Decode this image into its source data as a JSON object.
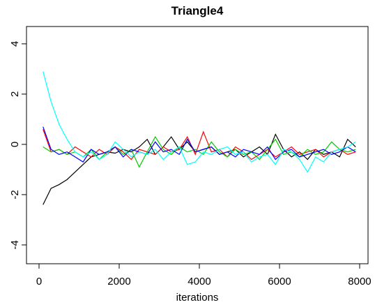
{
  "chart_data": {
    "type": "line",
    "title": "Triangle4",
    "x_label": "iterations",
    "x": [
      100,
      300,
      500,
      700,
      900,
      1100,
      1300,
      1500,
      1700,
      1900,
      2100,
      2300,
      2500,
      2700,
      2900,
      3100,
      3300,
      3500,
      3700,
      3900,
      4100,
      4300,
      4500,
      4700,
      4900,
      5100,
      5300,
      5500,
      5700,
      5900,
      6100,
      6300,
      6500,
      6700,
      6900,
      7100,
      7300,
      7500,
      7700,
      7900
    ],
    "series": [
      {
        "color": "#000000",
        "values": [
          -2.4,
          -1.75,
          -1.6,
          -1.4,
          -1.1,
          -0.8,
          -0.5,
          -0.4,
          -0.3,
          -0.35,
          -0.2,
          -0.3,
          -0.1,
          0.2,
          -0.4,
          -0.1,
          0.3,
          -0.2,
          0.1,
          -0.3,
          -0.2,
          -0.1,
          -0.4,
          -0.3,
          -0.2,
          -0.5,
          -0.3,
          -0.1,
          -0.4,
          0.4,
          -0.2,
          -0.5,
          -0.3,
          -0.6,
          -0.2,
          -0.4,
          -0.3,
          -0.5,
          0.2,
          -0.1
        ]
      },
      {
        "color": "#ff0000",
        "values": [
          0.6,
          -0.3,
          -0.2,
          -0.4,
          -0.1,
          -0.3,
          -0.5,
          -0.2,
          -0.4,
          -0.1,
          -0.3,
          -0.6,
          -0.2,
          -0.3,
          -0.4,
          -0.1,
          -0.3,
          -0.2,
          0.3,
          -0.4,
          0.5,
          -0.3,
          -0.2,
          -0.5,
          -0.1,
          -0.3,
          -0.6,
          -0.4,
          -0.2,
          -0.5,
          -0.3,
          -0.1,
          -0.4,
          -0.3,
          -0.2,
          -0.5,
          -0.3,
          -0.2,
          -0.4,
          -0.3
        ]
      },
      {
        "color": "#00cd00",
        "values": [
          -0.1,
          -0.3,
          -0.2,
          -0.4,
          -0.3,
          -0.5,
          -0.2,
          -0.6,
          -0.3,
          -0.1,
          -0.4,
          -0.2,
          -0.9,
          -0.3,
          0.3,
          -0.2,
          -0.4,
          -0.1,
          -0.3,
          -0.2,
          -0.4,
          0.1,
          -0.3,
          -0.5,
          -0.2,
          -0.4,
          -0.3,
          -0.6,
          -0.2,
          0.2,
          -0.4,
          -0.3,
          -0.5,
          -0.2,
          -0.4,
          -0.3,
          0.1,
          -0.2,
          -0.3,
          -0.2
        ]
      },
      {
        "color": "#0000ff",
        "values": [
          0.7,
          -0.2,
          -0.4,
          -0.3,
          -0.5,
          -0.7,
          -0.2,
          -0.4,
          -0.3,
          -0.1,
          -0.5,
          -0.2,
          -0.3,
          -0.4,
          0.1,
          -0.3,
          -0.2,
          -0.4,
          0.2,
          -0.3,
          -0.2,
          -0.1,
          -0.4,
          -0.3,
          -0.5,
          -0.2,
          -0.3,
          -0.4,
          -0.1,
          -0.6,
          -0.3,
          -0.2,
          -0.5,
          -0.4,
          -0.3,
          -0.2,
          -0.4,
          -0.3,
          -0.1,
          -0.3
        ]
      },
      {
        "color": "#00ffff",
        "values": [
          2.9,
          1.7,
          0.8,
          0.2,
          -0.3,
          -0.5,
          -0.3,
          -0.6,
          -0.4,
          0.1,
          -0.2,
          -0.5,
          -0.3,
          -0.4,
          -0.2,
          -0.6,
          -0.3,
          -0.1,
          -0.8,
          -0.7,
          -0.3,
          -0.4,
          -0.2,
          -0.1,
          -0.4,
          -0.3,
          -0.7,
          -0.5,
          -0.4,
          -0.8,
          -0.2,
          -0.3,
          -0.6,
          -1.1,
          -0.5,
          -0.7,
          -0.3,
          -0.2,
          -0.1,
          0.1
        ]
      }
    ],
    "xlim": [
      -313,
      8209
    ],
    "ylim": [
      -4.75,
      4.69
    ],
    "xticks": [
      0,
      2000,
      4000,
      6000,
      8000
    ],
    "yticks": [
      -4,
      -2,
      0,
      2,
      4
    ]
  }
}
